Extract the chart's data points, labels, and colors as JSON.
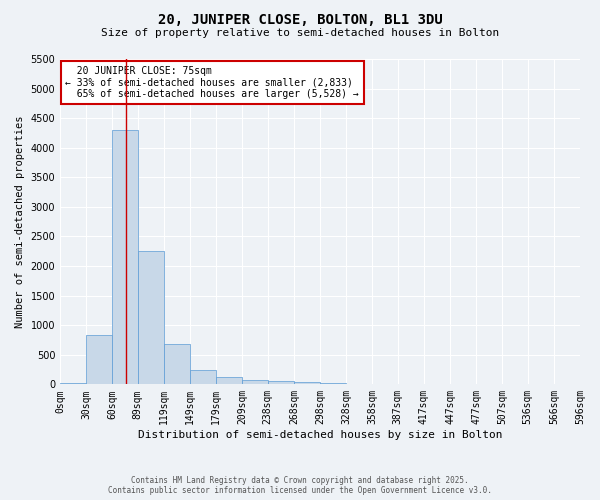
{
  "title": "20, JUNIPER CLOSE, BOLTON, BL1 3DU",
  "subtitle": "Size of property relative to semi-detached houses in Bolton",
  "xlabel": "Distribution of semi-detached houses by size in Bolton",
  "ylabel": "Number of semi-detached properties",
  "bin_labels": [
    "0sqm",
    "30sqm",
    "60sqm",
    "89sqm",
    "119sqm",
    "149sqm",
    "179sqm",
    "209sqm",
    "238sqm",
    "268sqm",
    "298sqm",
    "328sqm",
    "358sqm",
    "387sqm",
    "417sqm",
    "447sqm",
    "477sqm",
    "507sqm",
    "536sqm",
    "566sqm",
    "596sqm"
  ],
  "bin_edges": [
    0,
    30,
    60,
    89,
    119,
    149,
    179,
    209,
    238,
    268,
    298,
    328,
    358,
    387,
    417,
    447,
    477,
    507,
    536,
    566,
    596
  ],
  "bar_values": [
    30,
    830,
    4300,
    2250,
    680,
    250,
    120,
    70,
    60,
    35,
    30,
    0,
    0,
    0,
    0,
    0,
    0,
    0,
    0,
    0
  ],
  "bar_color": "#c8d8e8",
  "bar_edge_color": "#5b9bd5",
  "property_size": 75,
  "property_label": "20 JUNIPER CLOSE: 75sqm",
  "pct_smaller": 33,
  "n_smaller": 2833,
  "pct_larger": 65,
  "n_larger": 5528,
  "vline_color": "#cc0000",
  "annotation_box_color": "#cc0000",
  "ylim_max": 5500,
  "yticks": [
    0,
    500,
    1000,
    1500,
    2000,
    2500,
    3000,
    3500,
    4000,
    4500,
    5000,
    5500
  ],
  "footer_line1": "Contains HM Land Registry data © Crown copyright and database right 2025.",
  "footer_line2": "Contains public sector information licensed under the Open Government Licence v3.0.",
  "bg_color": "#eef2f6",
  "plot_bg_color": "#eef2f6",
  "grid_color": "#ffffff",
  "title_fontsize": 10,
  "subtitle_fontsize": 8,
  "tick_fontsize": 7,
  "ylabel_fontsize": 7.5,
  "xlabel_fontsize": 8,
  "ann_fontsize": 7,
  "footer_fontsize": 5.5
}
